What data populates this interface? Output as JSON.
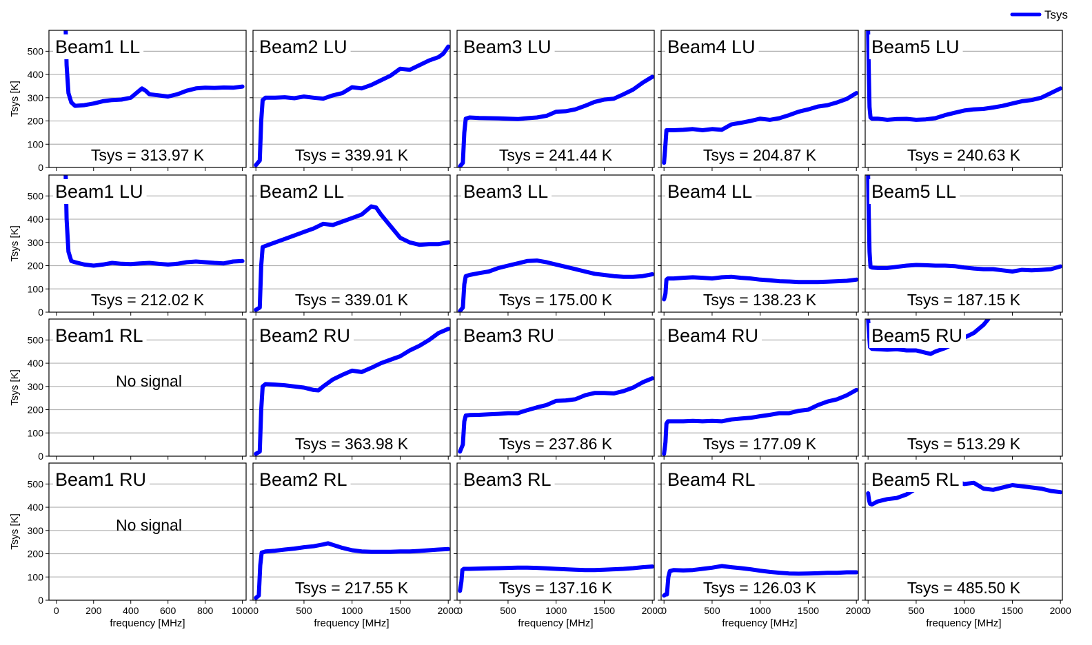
{
  "chart_data": {
    "type": "line",
    "legend": {
      "label": "Tsys",
      "position": "top-right",
      "color": "#0000ff"
    },
    "series_color": "#0000ff",
    "grid": "horizontal",
    "ylabel": "Tsys [K]",
    "xlabel": "frequency [MHz]",
    "ylim": [
      0,
      590
    ],
    "yticks": [
      0,
      100,
      200,
      300,
      400,
      500
    ],
    "columns": [
      {
        "xlim": [
          -40,
          1020
        ],
        "xticks": [
          0,
          200,
          400,
          600,
          800,
          1000
        ]
      },
      {
        "xlim": [
          -30,
          2020
        ],
        "xticks": [
          0,
          500,
          1000,
          1500,
          2000
        ]
      },
      {
        "xlim": [
          -30,
          2020
        ],
        "xticks": [
          0,
          500,
          1000,
          1500,
          2000
        ]
      },
      {
        "xlim": [
          -30,
          2020
        ],
        "xticks": [
          0,
          500,
          1000,
          1500,
          2000
        ]
      },
      {
        "xlim": [
          -30,
          2020
        ],
        "xticks": [
          0,
          500,
          1000,
          1500,
          2000
        ]
      }
    ],
    "panels": [
      {
        "title": "Beam1 LL",
        "label": "Tsys = 313.97 K",
        "x": [
          50,
          55,
          65,
          80,
          100,
          150,
          200,
          250,
          300,
          350,
          400,
          430,
          460,
          480,
          500,
          550,
          600,
          650,
          700,
          750,
          800,
          850,
          900,
          950,
          1000
        ],
        "y": [
          590,
          440,
          320,
          280,
          265,
          268,
          275,
          285,
          290,
          292,
          300,
          320,
          340,
          330,
          315,
          310,
          305,
          315,
          330,
          340,
          343,
          342,
          344,
          343,
          348
        ]
      },
      {
        "title": "Beam2 LU",
        "label": "Tsys = 339.91 K",
        "x": [
          0,
          40,
          55,
          70,
          100,
          200,
          300,
          400,
          500,
          600,
          700,
          800,
          900,
          1000,
          1100,
          1200,
          1300,
          1400,
          1500,
          1600,
          1700,
          1800,
          1900,
          1950,
          2000
        ],
        "y": [
          10,
          30,
          200,
          290,
          300,
          300,
          302,
          298,
          305,
          300,
          296,
          310,
          320,
          345,
          340,
          355,
          375,
          395,
          425,
          420,
          440,
          460,
          475,
          490,
          520
        ]
      },
      {
        "title": "Beam3 LU",
        "label": "Tsys = 241.44 K",
        "x": [
          0,
          30,
          45,
          60,
          100,
          200,
          300,
          400,
          500,
          600,
          700,
          800,
          900,
          1000,
          1100,
          1200,
          1300,
          1400,
          1500,
          1600,
          1700,
          1800,
          1900,
          2000
        ],
        "y": [
          5,
          20,
          150,
          210,
          215,
          213,
          212,
          211,
          210,
          208,
          212,
          215,
          222,
          240,
          242,
          250,
          265,
          282,
          292,
          296,
          315,
          335,
          365,
          390
        ]
      },
      {
        "title": "Beam4 LU",
        "label": "Tsys = 204.87 K",
        "x": [
          0,
          15,
          25,
          40,
          100,
          200,
          300,
          400,
          500,
          600,
          700,
          800,
          900,
          1000,
          1100,
          1200,
          1300,
          1400,
          1500,
          1600,
          1700,
          1800,
          1900,
          2000
        ],
        "y": [
          20,
          100,
          160,
          160,
          160,
          162,
          165,
          160,
          165,
          162,
          185,
          192,
          200,
          210,
          205,
          212,
          225,
          240,
          250,
          262,
          268,
          280,
          295,
          320
        ]
      },
      {
        "title": "Beam5 LU",
        "label": "Tsys = 240.63 K",
        "x": [
          0,
          8,
          15,
          25,
          40,
          100,
          200,
          300,
          400,
          500,
          600,
          700,
          800,
          900,
          1000,
          1100,
          1200,
          1300,
          1400,
          1500,
          1600,
          1700,
          1800,
          1900,
          2000
        ],
        "y": [
          590,
          400,
          260,
          215,
          210,
          210,
          205,
          208,
          209,
          205,
          207,
          212,
          225,
          235,
          245,
          250,
          252,
          258,
          265,
          275,
          285,
          290,
          300,
          320,
          340
        ]
      },
      {
        "title": "Beam1 LU",
        "label": "Tsys = 212.02 K",
        "x": [
          50,
          55,
          65,
          80,
          100,
          150,
          200,
          250,
          300,
          350,
          400,
          450,
          500,
          550,
          600,
          650,
          700,
          750,
          800,
          850,
          900,
          950,
          1000
        ],
        "y": [
          590,
          400,
          260,
          220,
          215,
          205,
          200,
          205,
          212,
          208,
          207,
          210,
          212,
          208,
          205,
          208,
          215,
          218,
          215,
          212,
          210,
          218,
          220
        ]
      },
      {
        "title": "Beam2 LL",
        "label": "Tsys = 339.01 K",
        "x": [
          0,
          40,
          55,
          70,
          100,
          200,
          300,
          400,
          500,
          600,
          700,
          800,
          900,
          1000,
          1100,
          1200,
          1250,
          1300,
          1400,
          1500,
          1600,
          1700,
          1800,
          1900,
          2000
        ],
        "y": [
          10,
          20,
          200,
          280,
          285,
          300,
          315,
          330,
          345,
          360,
          380,
          375,
          390,
          405,
          420,
          455,
          450,
          420,
          370,
          320,
          300,
          290,
          293,
          293,
          300
        ]
      },
      {
        "title": "Beam3 LL",
        "label": "Tsys = 175.00 K",
        "x": [
          0,
          30,
          45,
          60,
          100,
          200,
          300,
          400,
          500,
          600,
          700,
          800,
          900,
          1000,
          1100,
          1200,
          1300,
          1400,
          1500,
          1600,
          1700,
          1800,
          1900,
          2000
        ],
        "y": [
          5,
          20,
          120,
          155,
          160,
          168,
          175,
          190,
          200,
          210,
          220,
          222,
          215,
          205,
          195,
          185,
          175,
          165,
          160,
          155,
          152,
          152,
          155,
          163
        ]
      },
      {
        "title": "Beam4 LL",
        "label": "Tsys = 138.23 K",
        "x": [
          0,
          15,
          25,
          40,
          100,
          200,
          300,
          400,
          500,
          600,
          700,
          800,
          900,
          1000,
          1100,
          1200,
          1300,
          1400,
          1500,
          1600,
          1700,
          1800,
          1900,
          2000
        ],
        "y": [
          55,
          80,
          140,
          145,
          145,
          148,
          150,
          148,
          145,
          150,
          152,
          148,
          145,
          140,
          137,
          133,
          132,
          130,
          130,
          130,
          131,
          133,
          135,
          140
        ]
      },
      {
        "title": "Beam5 LL",
        "label": "Tsys = 187.15 K",
        "x": [
          0,
          8,
          15,
          25,
          40,
          100,
          200,
          300,
          400,
          500,
          600,
          700,
          800,
          900,
          1000,
          1100,
          1200,
          1300,
          1400,
          1500,
          1600,
          1700,
          1800,
          1900,
          2000
        ],
        "y": [
          590,
          400,
          260,
          195,
          192,
          190,
          190,
          195,
          200,
          203,
          202,
          200,
          200,
          198,
          192,
          188,
          185,
          185,
          180,
          175,
          182,
          180,
          182,
          185,
          197
        ]
      },
      {
        "title": "Beam1 RL",
        "label": "No signal",
        "x": [],
        "y": []
      },
      {
        "title": "Beam2 RU",
        "label": "Tsys = 363.98 K",
        "x": [
          0,
          40,
          55,
          70,
          100,
          200,
          300,
          400,
          500,
          600,
          650,
          700,
          800,
          900,
          1000,
          1100,
          1200,
          1300,
          1400,
          1500,
          1600,
          1700,
          1800,
          1900,
          2000
        ],
        "y": [
          10,
          20,
          200,
          300,
          310,
          308,
          305,
          300,
          295,
          285,
          283,
          300,
          330,
          350,
          368,
          362,
          380,
          400,
          415,
          430,
          455,
          475,
          500,
          530,
          548
        ]
      },
      {
        "title": "Beam3 RU",
        "label": "Tsys = 237.86 K",
        "x": [
          0,
          30,
          45,
          60,
          100,
          200,
          300,
          400,
          500,
          600,
          700,
          800,
          900,
          1000,
          1100,
          1200,
          1300,
          1400,
          1500,
          1600,
          1700,
          1800,
          1900,
          2000
        ],
        "y": [
          20,
          50,
          150,
          175,
          177,
          178,
          180,
          182,
          185,
          185,
          198,
          210,
          220,
          238,
          240,
          245,
          262,
          272,
          272,
          270,
          280,
          295,
          318,
          335
        ]
      },
      {
        "title": "Beam4 RU",
        "label": "Tsys = 177.09 K",
        "x": [
          0,
          15,
          25,
          40,
          100,
          200,
          300,
          400,
          500,
          600,
          700,
          800,
          900,
          1000,
          1100,
          1200,
          1300,
          1400,
          1500,
          1600,
          1700,
          1800,
          1900,
          2000
        ],
        "y": [
          10,
          60,
          140,
          150,
          150,
          150,
          152,
          150,
          152,
          150,
          158,
          162,
          165,
          172,
          178,
          185,
          185,
          195,
          200,
          220,
          235,
          245,
          262,
          285
        ]
      },
      {
        "title": "Beam5 RU",
        "label": "Tsys = 513.29 K",
        "x": [
          0,
          20,
          40,
          100,
          200,
          300,
          400,
          500,
          600,
          650,
          700,
          800,
          900,
          1000,
          1100,
          1200,
          1250
        ],
        "y": [
          590,
          470,
          462,
          460,
          458,
          460,
          455,
          455,
          445,
          440,
          450,
          465,
          485,
          510,
          530,
          565,
          590
        ]
      },
      {
        "title": "Beam1 RU",
        "label": "No signal",
        "x": [],
        "y": []
      },
      {
        "title": "Beam2 RL",
        "label": "Tsys = 217.55 K",
        "x": [
          0,
          30,
          45,
          60,
          100,
          200,
          300,
          400,
          500,
          600,
          700,
          750,
          800,
          900,
          1000,
          1100,
          1200,
          1300,
          1400,
          1500,
          1600,
          1700,
          1800,
          1900,
          2000
        ],
        "y": [
          10,
          20,
          150,
          205,
          210,
          213,
          218,
          222,
          228,
          232,
          240,
          245,
          238,
          225,
          215,
          210,
          208,
          208,
          208,
          210,
          210,
          212,
          215,
          218,
          220
        ]
      },
      {
        "title": "Beam3 RL",
        "label": "Tsys = 137.16 K",
        "x": [
          0,
          15,
          25,
          40,
          100,
          200,
          300,
          400,
          500,
          600,
          700,
          800,
          900,
          1000,
          1100,
          1200,
          1300,
          1400,
          1500,
          1600,
          1700,
          1800,
          1900,
          2000
        ],
        "y": [
          40,
          80,
          130,
          135,
          135,
          136,
          137,
          138,
          139,
          140,
          140,
          139,
          137,
          135,
          133,
          131,
          130,
          130,
          131,
          133,
          135,
          138,
          142,
          145
        ]
      },
      {
        "title": "Beam4 RL",
        "label": "Tsys = 126.03 K",
        "x": [
          0,
          15,
          30,
          45,
          60,
          100,
          200,
          300,
          400,
          500,
          600,
          700,
          800,
          900,
          1000,
          1100,
          1200,
          1300,
          1400,
          1500,
          1600,
          1700,
          1800,
          1900,
          2000
        ],
        "y": [
          20,
          25,
          25,
          100,
          125,
          130,
          128,
          130,
          135,
          140,
          147,
          142,
          138,
          133,
          127,
          122,
          118,
          115,
          114,
          115,
          116,
          118,
          118,
          120,
          120
        ]
      },
      {
        "title": "Beam5 RL",
        "label": "Tsys = 485.50 K",
        "x": [
          0,
          10,
          20,
          40,
          100,
          200,
          300,
          400,
          500,
          600,
          700,
          800,
          900,
          1000,
          1100,
          1200,
          1300,
          1400,
          1500,
          1600,
          1700,
          1800,
          1900,
          2000
        ],
        "y": [
          460,
          430,
          415,
          412,
          425,
          435,
          440,
          455,
          480,
          500,
          520,
          525,
          515,
          500,
          505,
          480,
          475,
          485,
          495,
          490,
          485,
          480,
          470,
          465
        ]
      }
    ]
  }
}
